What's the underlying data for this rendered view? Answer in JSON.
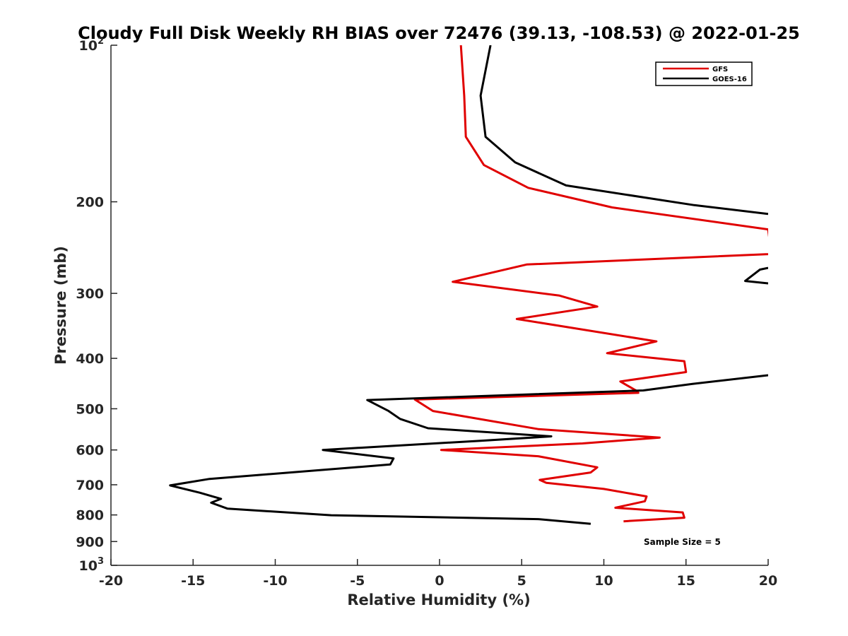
{
  "chart_data": {
    "type": "line",
    "title": "Cloudy Full Disk Weekly RH BIAS over 72476 (39.13, -108.53) @ 2022-01-25",
    "xlabel": "Relative Humidity (%)",
    "ylabel": "Pressure (mb)",
    "xlim": [
      -20,
      20
    ],
    "ylim": [
      100,
      1000
    ],
    "y_scale": "log",
    "y_reversed": true,
    "x_ticks": [
      -20,
      -15,
      -10,
      -5,
      0,
      5,
      10,
      15,
      20
    ],
    "x_tick_labels": [
      "-20",
      "-15",
      "-10",
      "-5",
      "0",
      "5",
      "10",
      "15",
      "20"
    ],
    "y_ticks": [
      {
        "value": 100,
        "base": "10",
        "exp": "2"
      },
      {
        "value": 200,
        "label": "200"
      },
      {
        "value": 300,
        "label": "300"
      },
      {
        "value": 400,
        "label": "400"
      },
      {
        "value": 500,
        "label": "500"
      },
      {
        "value": 600,
        "label": "600"
      },
      {
        "value": 700,
        "label": "700"
      },
      {
        "value": 800,
        "label": "800"
      },
      {
        "value": 900,
        "label": "900"
      },
      {
        "value": 1000,
        "base": "10",
        "exp": "3"
      }
    ],
    "grid": false,
    "legend_position": "top-right",
    "annotation": "Sample Size = 5",
    "series": [
      {
        "name": "GFS",
        "color": "#e00000",
        "points": [
          [
            1.3,
            100
          ],
          [
            1.5,
            125
          ],
          [
            1.6,
            150
          ],
          [
            2.7,
            170
          ],
          [
            5.4,
            188
          ],
          [
            10.5,
            205
          ],
          [
            20,
            226
          ],
          [
            20.2,
            252
          ],
          [
            5.3,
            264
          ],
          [
            0.8,
            285
          ],
          [
            7.3,
            303
          ],
          [
            9.6,
            318
          ],
          [
            4.7,
            336
          ],
          [
            13.2,
            371
          ],
          [
            10.2,
            391
          ],
          [
            14.9,
            405
          ],
          [
            15.0,
            425
          ],
          [
            11.0,
            443
          ],
          [
            12.0,
            462
          ],
          [
            12.1,
            466
          ],
          [
            -1.5,
            480
          ],
          [
            -0.4,
            505
          ],
          [
            6.0,
            547
          ],
          [
            13.4,
            568
          ],
          [
            8.7,
            583
          ],
          [
            0.1,
            600
          ],
          [
            6.0,
            617
          ],
          [
            9.6,
            648
          ],
          [
            9.2,
            663
          ],
          [
            6.1,
            685
          ],
          [
            6.5,
            694
          ],
          [
            10.0,
            713
          ],
          [
            12.6,
            737
          ],
          [
            12.5,
            753
          ],
          [
            10.7,
            775
          ],
          [
            14.8,
            791
          ],
          [
            14.9,
            810
          ],
          [
            11.2,
            823
          ]
        ]
      },
      {
        "name": "GOES-16",
        "color": "#000000",
        "segments": [
          [
            [
              3.1,
              100
            ],
            [
              2.5,
              125
            ],
            [
              2.8,
              150
            ],
            [
              4.6,
              168
            ],
            [
              7.7,
              186
            ],
            [
              15.5,
              203
            ],
            [
              20,
              211
            ]
          ],
          [
            [
              20,
              268
            ],
            [
              19.5,
              270
            ],
            [
              18.6,
              284
            ],
            [
              20,
              287
            ]
          ],
          [
            [
              20,
              431
            ],
            [
              15.4,
              448
            ],
            [
              12.4,
              461
            ],
            [
              -4.4,
              481
            ],
            [
              -3.1,
              505
            ],
            [
              -2.4,
              523
            ],
            [
              -0.7,
              545
            ],
            [
              6.8,
              565
            ],
            [
              2.5,
              576
            ],
            [
              -7.1,
              600
            ],
            [
              -2.8,
              623
            ],
            [
              -3.0,
              640
            ],
            [
              -14.0,
              682
            ],
            [
              -16.4,
              702
            ],
            [
              -14.6,
              725
            ],
            [
              -13.3,
              745
            ],
            [
              -13.9,
              758
            ],
            [
              -12.9,
              778
            ],
            [
              -6.6,
              801
            ],
            [
              6.0,
              815
            ],
            [
              9.2,
              832
            ]
          ]
        ]
      }
    ]
  }
}
